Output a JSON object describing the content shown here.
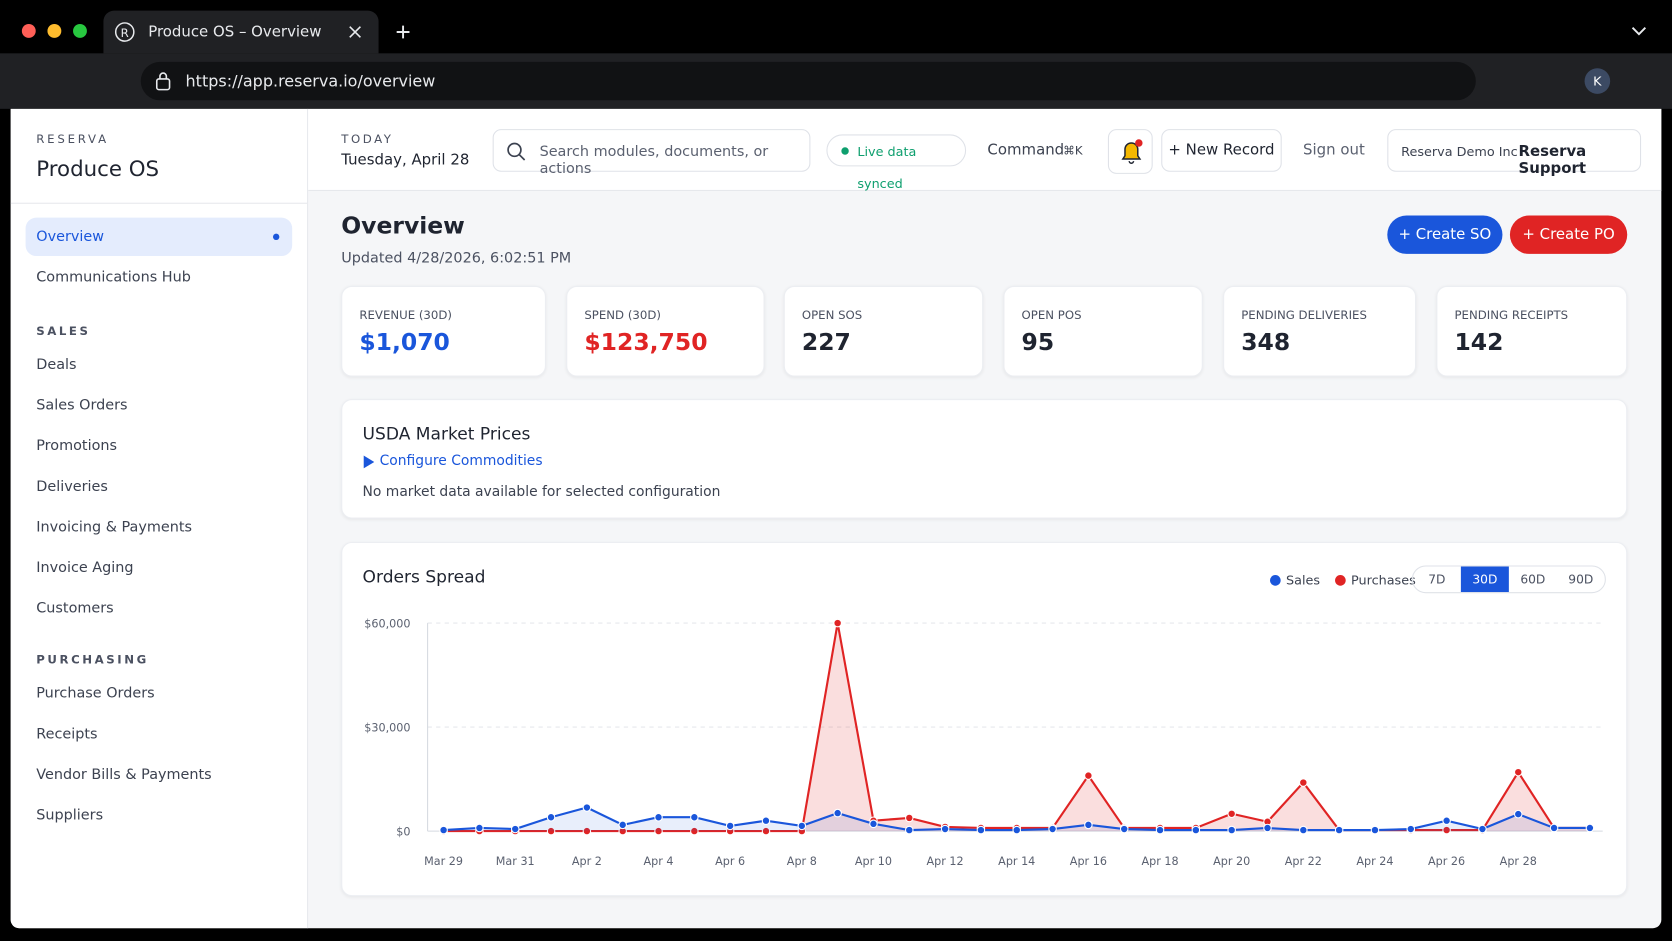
{
  "browser": {
    "tab_title": "Produce OS – Overview",
    "url": "https://app.reserva.io/overview",
    "avatar": "K"
  },
  "sidebar": {
    "brand": "RESERVA",
    "app": "Produce OS",
    "nav": [
      {
        "label": "Overview",
        "active": true
      },
      {
        "label": "Communications Hub",
        "active": false
      }
    ],
    "sections": [
      {
        "title": "SALES",
        "items": [
          "Deals",
          "Sales Orders",
          "Promotions",
          "Deliveries",
          "Invoicing & Payments",
          "Invoice Aging",
          "Customers"
        ]
      },
      {
        "title": "PURCHASING",
        "items": [
          "Purchase Orders",
          "Receipts",
          "Vendor Bills & Payments",
          "Suppliers"
        ]
      }
    ]
  },
  "topbar": {
    "today_label": "TODAY",
    "date": "Tuesday, April 28",
    "search_placeholder": "Search modules, documents, or actions",
    "sync_status": "Live data synced",
    "command": "Command",
    "shortcut": "⌘K",
    "new_record": "+ New Record",
    "sign_out": "Sign out",
    "org": "Reserva Demo Inc",
    "support": "Reserva Support"
  },
  "page": {
    "title": "Overview",
    "updated": "Updated 4/28/2026, 6:02:51 PM",
    "actions": [
      "+ Create SO",
      "+ Create PO"
    ]
  },
  "kpis": [
    {
      "label": "REVENUE (30D)",
      "value": "$1,070"
    },
    {
      "label": "SPEND (30D)",
      "value": "$123,750"
    },
    {
      "label": "OPEN SOS",
      "value": "227"
    },
    {
      "label": "OPEN POS",
      "value": "95"
    },
    {
      "label": "PENDING DELIVERIES",
      "value": "348"
    },
    {
      "label": "PENDING RECEIPTS",
      "value": "142"
    }
  ],
  "market": {
    "title": "USDA Market Prices",
    "link": "Configure Commodities",
    "empty": "No market data available for selected configuration"
  },
  "chart_data": {
    "type": "line",
    "title": "Orders Spread",
    "categories": [
      "Mar 29",
      null,
      "Mar 31",
      null,
      "Apr 2",
      null,
      "Apr 4",
      null,
      "Apr 6",
      null,
      "Apr 8",
      null,
      "Apr 10",
      null,
      "Apr 12",
      null,
      "Apr 14",
      null,
      "Apr 16",
      null,
      "Apr 18",
      null,
      "Apr 20",
      null,
      "Apr 22",
      null,
      "Apr 24",
      null,
      "Apr 26",
      null,
      "Apr 28",
      null,
      null
    ],
    "series": [
      {
        "name": "Sales",
        "color": "#1a56db",
        "values": [
          300,
          900,
          600,
          4000,
          6800,
          1800,
          4000,
          4000,
          1500,
          3000,
          1500,
          5200,
          2100,
          300,
          600,
          300,
          300,
          600,
          1800,
          600,
          300,
          300,
          300,
          900,
          300,
          300,
          300,
          600,
          3000,
          600,
          4900,
          900,
          900
        ]
      },
      {
        "name": "Purchases",
        "color": "#e02424",
        "values": [
          0,
          0,
          0,
          0,
          0,
          0,
          0,
          0,
          0,
          0,
          0,
          60000,
          3000,
          3800,
          1200,
          900,
          900,
          900,
          16000,
          900,
          900,
          900,
          5000,
          2700,
          14000,
          300,
          300,
          300,
          300,
          300,
          17000,
          900,
          900
        ]
      }
    ],
    "ylim": [
      0,
      60000
    ],
    "yticks": [
      {
        "value": 0,
        "label": "$0"
      },
      {
        "value": 30000,
        "label": "$30,000"
      },
      {
        "value": 60000,
        "label": "$60,000"
      }
    ],
    "grid": true,
    "ranges": [
      "7D",
      "30D",
      "60D",
      "90D"
    ],
    "active_range": "30D"
  }
}
